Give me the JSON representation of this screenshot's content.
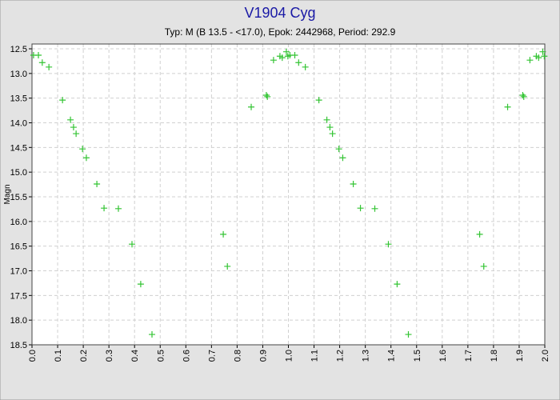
{
  "chart_data": {
    "type": "scatter",
    "title": "V1904 Cyg",
    "subtitle": "Typ: M (B 13.5 - <17.0), Epok: 2442968, Period: 292.9",
    "y_label": "Magn",
    "x": [
      0.006,
      0.025,
      0.04,
      0.066,
      0.119,
      0.15,
      0.162,
      0.172,
      0.197,
      0.212,
      0.253,
      0.281,
      0.337,
      0.39,
      0.424,
      0.468,
      0.746,
      0.762,
      0.855,
      0.914,
      0.918,
      0.942,
      0.967,
      0.976,
      0.992,
      0.998,
      1.006,
      1.025,
      1.04,
      1.066,
      1.119,
      1.15,
      1.162,
      1.172,
      1.197,
      1.212,
      1.253,
      1.281,
      1.337,
      1.39,
      1.424,
      1.468,
      1.746,
      1.762,
      1.855,
      1.914,
      1.918,
      1.942,
      1.967,
      1.976,
      1.992,
      1.998
    ],
    "values": [
      12.63,
      12.63,
      12.78,
      12.87,
      13.54,
      13.94,
      14.09,
      14.22,
      14.53,
      14.71,
      15.24,
      15.73,
      15.74,
      16.46,
      17.27,
      18.29,
      16.26,
      16.91,
      13.68,
      13.44,
      13.47,
      12.73,
      12.65,
      12.68,
      12.56,
      12.65,
      12.63,
      12.63,
      12.78,
      12.87,
      13.54,
      13.94,
      14.09,
      14.22,
      14.53,
      14.71,
      15.24,
      15.73,
      15.74,
      16.46,
      17.27,
      18.29,
      16.26,
      16.91,
      13.68,
      13.44,
      13.47,
      12.73,
      12.65,
      12.68,
      12.56,
      12.65
    ],
    "color": "#33c433",
    "xlim": [
      0,
      2
    ],
    "ylim": [
      12.5,
      18.5
    ],
    "y_inverted": true,
    "grid": true,
    "xticks": [
      {
        "value": 0,
        "label": "0.0"
      },
      0.1,
      0.2,
      0.3,
      0.4,
      0.5,
      0.6,
      0.7,
      0.8,
      0.9,
      {
        "value": 1,
        "label": "1.0"
      },
      1.1,
      1.2,
      1.3,
      1.4,
      1.5,
      1.6,
      1.7,
      1.8,
      1.9,
      {
        "value": 2,
        "label": "2.0"
      }
    ],
    "yticks": [
      12.5,
      {
        "value": 13,
        "label": "13.0"
      },
      13.5,
      {
        "value": 14,
        "label": "14.0"
      },
      14.5,
      {
        "value": 15,
        "label": "15.0"
      },
      15.5,
      {
        "value": 16,
        "label": "16.0"
      },
      16.5,
      {
        "value": 17,
        "label": "17.0"
      },
      17.5,
      {
        "value": 18,
        "label": "18.0"
      },
      18.5
    ]
  }
}
